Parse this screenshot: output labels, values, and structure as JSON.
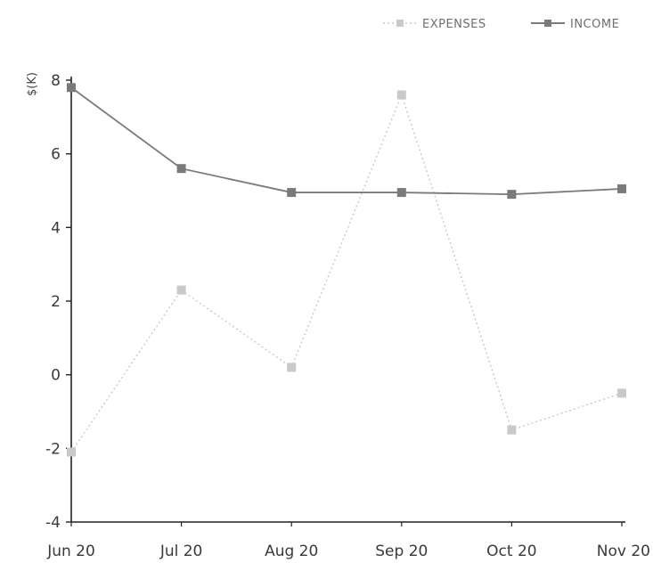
{
  "chart_data": {
    "type": "line",
    "title": "",
    "xlabel": "",
    "ylabel": "$(K)",
    "ylim": [
      -4,
      8
    ],
    "yticks": [
      -4,
      -2,
      0,
      2,
      4,
      6,
      8
    ],
    "categories": [
      "Jun 20",
      "Jul 20",
      "Aug 20",
      "Sep 20",
      "Oct 20",
      "Nov 20"
    ],
    "legend_position": "top-right",
    "grid": false,
    "series": [
      {
        "name": "EXPENSES",
        "values": [
          -2.1,
          2.3,
          0.2,
          7.6,
          -1.5,
          -0.5
        ],
        "color": "#c9c9c9",
        "dashed": true
      },
      {
        "name": "INCOME",
        "values": [
          7.8,
          5.6,
          4.95,
          4.95,
          4.9,
          5.05
        ],
        "color": "#7a7a7a",
        "dashed": false
      }
    ]
  }
}
